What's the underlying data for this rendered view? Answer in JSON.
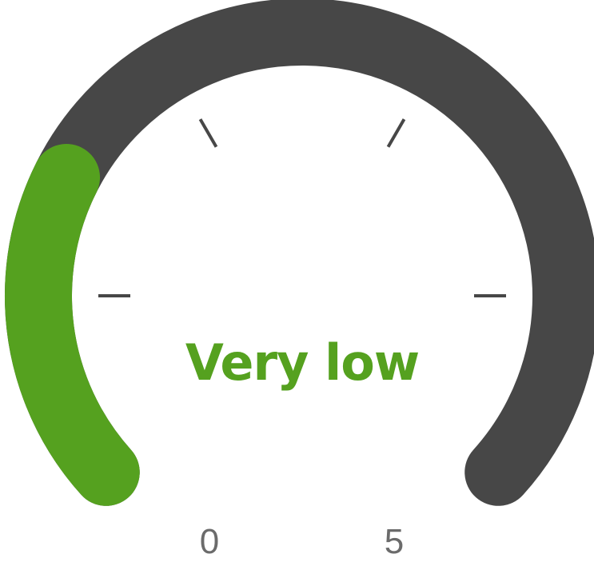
{
  "gauge": {
    "level_label": "Very low",
    "value": 0.26,
    "min_label": "0",
    "max_label": "5",
    "colors": {
      "track": "#474747",
      "fill": "#55a11f",
      "label": "#55a11f",
      "ticks": "#474747",
      "scale_text": "#6b6b6b"
    }
  }
}
